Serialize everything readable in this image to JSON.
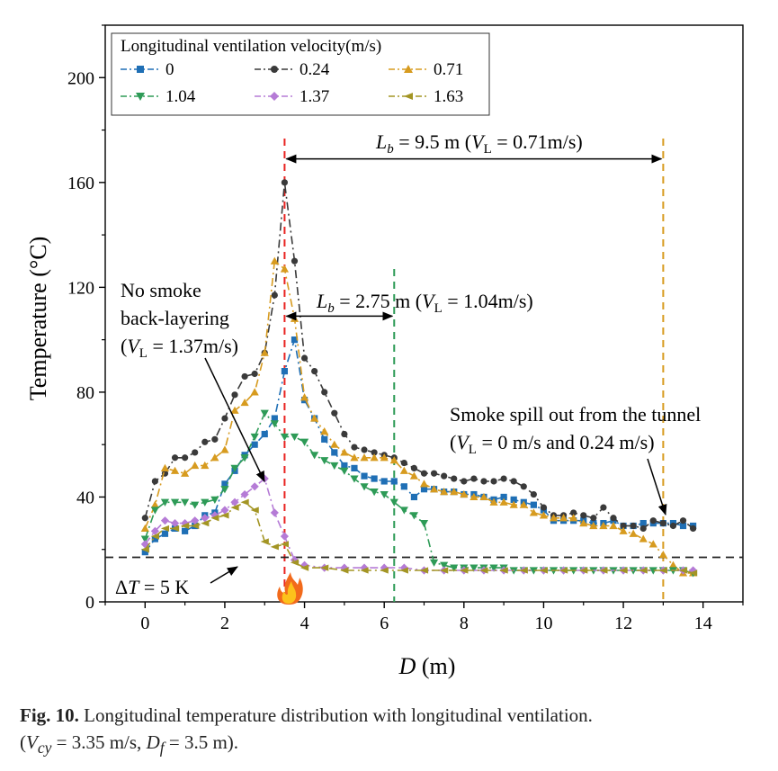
{
  "chart_data": {
    "type": "line",
    "xlabel_italic": "D",
    "xlabel_unit": " (m)",
    "ylabel": "Temperature (°C)",
    "xlim": [
      -1,
      15
    ],
    "ylim": [
      0,
      220
    ],
    "xticks": [
      0,
      2,
      4,
      6,
      8,
      10,
      12,
      14
    ],
    "yticks": [
      0,
      40,
      80,
      120,
      160,
      200
    ],
    "grid": false,
    "legend": {
      "title": "Longitudinal ventilation velocity(m/s)",
      "placement": "top-left"
    },
    "series": [
      {
        "name": "0",
        "color": "#1f6fb5",
        "marker": "square",
        "x": [
          0,
          0.25,
          0.5,
          0.75,
          1,
          1.25,
          1.5,
          1.75,
          2,
          2.25,
          2.5,
          2.75,
          3,
          3.25,
          3.5,
          3.75,
          4,
          4.25,
          4.5,
          4.75,
          5,
          5.25,
          5.5,
          5.75,
          6,
          6.25,
          6.5,
          6.75,
          7,
          7.25,
          7.5,
          7.75,
          8,
          8.25,
          8.5,
          8.75,
          9,
          9.25,
          9.5,
          9.75,
          10,
          10.25,
          10.5,
          10.75,
          11,
          11.25,
          11.5,
          11.75,
          12,
          12.25,
          12.5,
          12.75,
          13,
          13.25,
          13.5,
          13.75
        ],
        "y": [
          19,
          24,
          26,
          28,
          27,
          29,
          33,
          34,
          45,
          50,
          56,
          60,
          64,
          70,
          88,
          100,
          77,
          70,
          62,
          57,
          52,
          51,
          48,
          47,
          46,
          46,
          44,
          40,
          43,
          43,
          42,
          42,
          41,
          41,
          40,
          39,
          40,
          39,
          38,
          37,
          35,
          31,
          31,
          31,
          31,
          30,
          30,
          31,
          29,
          29,
          30,
          30,
          30,
          30,
          29,
          29
        ]
      },
      {
        "name": "0.24",
        "color": "#3a3a3a",
        "marker": "circle",
        "x": [
          0,
          0.25,
          0.5,
          0.75,
          1,
          1.25,
          1.5,
          1.75,
          2,
          2.25,
          2.5,
          2.75,
          3,
          3.25,
          3.5,
          3.75,
          4,
          4.25,
          4.5,
          4.75,
          5,
          5.25,
          5.5,
          5.75,
          6,
          6.25,
          6.5,
          6.75,
          7,
          7.25,
          7.5,
          7.75,
          8,
          8.25,
          8.5,
          8.75,
          9,
          9.25,
          9.5,
          9.75,
          10,
          10.25,
          10.5,
          10.75,
          11,
          11.25,
          11.5,
          11.75,
          12,
          12.25,
          12.5,
          12.75,
          13,
          13.25,
          13.5,
          13.75
        ],
        "y": [
          32,
          46,
          49,
          55,
          55,
          57,
          61,
          62,
          70,
          79,
          86,
          87,
          95,
          117,
          160,
          130,
          93,
          88,
          80,
          72,
          64,
          59,
          58,
          57,
          56,
          55,
          53,
          51,
          49,
          49,
          48,
          47,
          46,
          47,
          46,
          46,
          47,
          46,
          44,
          41,
          36,
          33,
          33,
          34,
          33,
          32,
          36,
          32,
          29,
          29,
          28,
          31,
          30,
          29,
          31,
          28
        ]
      },
      {
        "name": "0.71",
        "color": "#d79b1f",
        "marker": "triangle-up",
        "x": [
          0,
          0.25,
          0.5,
          0.75,
          1,
          1.25,
          1.5,
          1.75,
          2,
          2.25,
          2.5,
          2.75,
          3,
          3.25,
          3.5,
          3.75,
          4,
          4.25,
          4.5,
          4.75,
          5,
          5.25,
          5.5,
          5.75,
          6,
          6.25,
          6.5,
          6.75,
          7,
          7.25,
          7.5,
          7.75,
          8,
          8.25,
          8.5,
          8.75,
          9,
          9.25,
          9.5,
          9.75,
          10,
          10.25,
          10.5,
          10.75,
          11,
          11.25,
          11.5,
          11.75,
          12,
          12.25,
          12.5,
          12.75,
          13,
          13.25,
          13.5,
          13.75
        ],
        "y": [
          28,
          37,
          51,
          50,
          49,
          52,
          52,
          55,
          58,
          73,
          76,
          80,
          95,
          130,
          127,
          108,
          78,
          70,
          65,
          60,
          57,
          55,
          55,
          55,
          55,
          54,
          50,
          48,
          45,
          43,
          42,
          42,
          41,
          40,
          40,
          38,
          38,
          37,
          37,
          34,
          33,
          32,
          32,
          32,
          30,
          29,
          29,
          29,
          27,
          26,
          24,
          22,
          18,
          14,
          11,
          11
        ]
      },
      {
        "name": "1.04",
        "color": "#2e9b57",
        "marker": "triangle-down",
        "x": [
          0,
          0.25,
          0.5,
          0.75,
          1,
          1.25,
          1.5,
          1.75,
          2,
          2.25,
          2.5,
          2.75,
          3,
          3.25,
          3.5,
          3.75,
          4,
          4.25,
          4.5,
          4.75,
          5,
          5.25,
          5.5,
          5.75,
          6,
          6.25,
          6.5,
          6.75,
          7,
          7.25,
          7.5,
          7.75,
          8,
          8.25,
          8.5,
          8.75,
          9,
          9.25,
          9.5,
          9.75,
          10,
          10.25,
          10.5,
          10.75,
          11,
          11.25,
          11.5,
          11.75,
          12,
          12.25,
          12.5,
          12.75,
          13,
          13.25,
          13.5,
          13.75
        ],
        "y": [
          24,
          35,
          38,
          38,
          38,
          37,
          38,
          39,
          43,
          51,
          55,
          63,
          72,
          68,
          63,
          63,
          61,
          56,
          54,
          52,
          50,
          47,
          44,
          42,
          41,
          38,
          35,
          33,
          30,
          15,
          14,
          13,
          13,
          13,
          13,
          13,
          13,
          12,
          12,
          12,
          12,
          12,
          12,
          12,
          12,
          12,
          12,
          12,
          12,
          12,
          12,
          12,
          12,
          12,
          12,
          11
        ]
      },
      {
        "name": "1.37",
        "color": "#b57bd6",
        "marker": "diamond",
        "x": [
          0,
          0.25,
          0.5,
          0.75,
          1,
          1.25,
          1.5,
          1.75,
          2,
          2.25,
          2.5,
          2.75,
          3,
          3.25,
          3.5,
          3.75,
          4,
          4.5,
          5,
          5.5,
          6,
          6.5,
          7,
          7.5,
          8,
          8.5,
          9,
          9.5,
          10,
          10.5,
          11,
          11.5,
          12,
          12.5,
          13,
          13.5,
          13.75
        ],
        "y": [
          22,
          27,
          31,
          30,
          30,
          31,
          32,
          33,
          35,
          38,
          41,
          44,
          47,
          34,
          25,
          16,
          14,
          13,
          13,
          13,
          13,
          13,
          12,
          12,
          12,
          12,
          12,
          12,
          12,
          12,
          12,
          12,
          12,
          12,
          12,
          12,
          12
        ]
      },
      {
        "name": "1.63",
        "color": "#a39524",
        "marker": "star",
        "x": [
          0,
          0.25,
          0.5,
          0.75,
          1,
          1.25,
          1.5,
          1.75,
          2,
          2.25,
          2.5,
          2.75,
          3,
          3.25,
          3.5,
          3.75,
          4,
          4.5,
          5,
          5.5,
          6,
          6.5,
          7,
          7.5,
          8,
          8.5,
          9,
          9.5,
          10,
          10.5,
          11,
          11.5,
          12,
          12.5,
          13,
          13.5,
          13.75
        ],
        "y": [
          20,
          25,
          28,
          28,
          29,
          29,
          30,
          32,
          33,
          36,
          38,
          35,
          23,
          21,
          22,
          15,
          13,
          13,
          12,
          12,
          12,
          12,
          12,
          12,
          12,
          12,
          12,
          12,
          12,
          12,
          12,
          12,
          12,
          12,
          12,
          12,
          11
        ]
      }
    ],
    "reference_lines": [
      {
        "type": "vertical",
        "x": 3.5,
        "color": "#e8221f"
      },
      {
        "type": "vertical",
        "x": 6.25,
        "color": "#2e9b57"
      },
      {
        "type": "vertical",
        "x": 13,
        "color": "#d79b1f"
      },
      {
        "type": "horizontal",
        "y": 17,
        "color": "#222222"
      }
    ],
    "annotations": {
      "lb_095": {
        "lead": "L",
        "sub": "b",
        "text1": " = 9.5 m (",
        "vl": "V",
        "vsub": "L",
        "text2": " = 0.71m/s)",
        "x_from": 3.5,
        "x_to": 13,
        "y": 169
      },
      "lb_275": {
        "lead": "L",
        "sub": "b",
        "text1": " = 2.75 m (",
        "vl": "V",
        "vsub": "L",
        "text2": " = 1.04m/s)",
        "x_from": 3.5,
        "x_to": 6.25,
        "y": 109
      },
      "no_smoke_1": "No smoke",
      "no_smoke_2": "back-layering",
      "no_smoke_3_pre": "(",
      "no_smoke_3_vl": "V",
      "no_smoke_3_sub": "L",
      "no_smoke_3_post": " = 1.37m/s)",
      "spill_1": "Smoke spill out from the tunnel",
      "spill_2_pre": "(",
      "spill_2_vl": "V",
      "spill_2_sub": "L",
      "spill_2_post": " = 0 m/s and 0.24 m/s)",
      "delta_pre": "Δ",
      "delta_t": "T",
      "delta_post": " = 5 K"
    }
  },
  "caption": {
    "fig_label": "Fig. 10.",
    "text": " Longitudinal temperature distribution with longitudinal ventilation.",
    "params_open": "(",
    "v": "V",
    "v_sub": "cy",
    "v_val": " = 3.35 m/s, ",
    "d": "D",
    "d_sub": "f",
    "d_val": " = 3.5 m)."
  }
}
